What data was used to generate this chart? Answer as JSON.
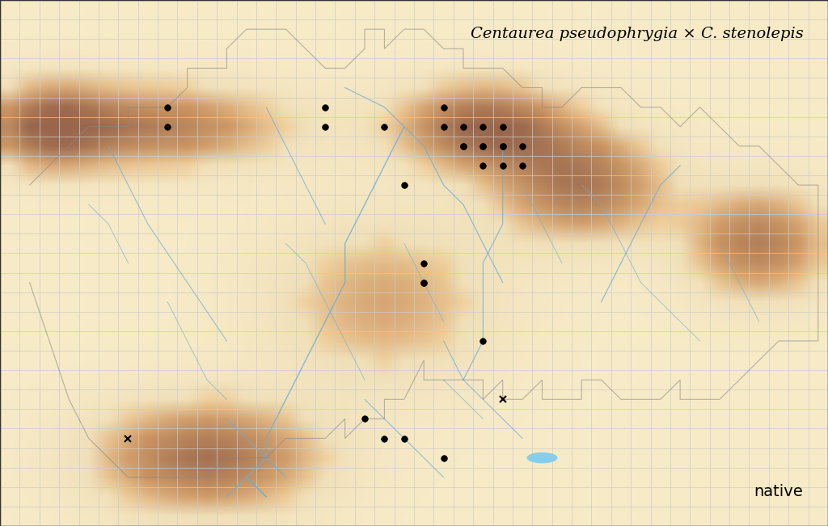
{
  "title": "Centaurea pseudophrygia × C. stenolepis",
  "note": "native",
  "x_min": 38,
  "x_max": 79,
  "y_min": 48,
  "y_max": 74,
  "background_color": "#f5f5f5",
  "grid_color": "#cccccc",
  "dot_points": [
    [
      46,
      53
    ],
    [
      46,
      54
    ],
    [
      54,
      53
    ],
    [
      54,
      54
    ],
    [
      57,
      54
    ],
    [
      60,
      53
    ],
    [
      60,
      54
    ],
    [
      61,
      54
    ],
    [
      61,
      55
    ],
    [
      61,
      55
    ],
    [
      62,
      54
    ],
    [
      62,
      55
    ],
    [
      62,
      55
    ],
    [
      63,
      54
    ],
    [
      63,
      55
    ],
    [
      63,
      55
    ],
    [
      62,
      56
    ],
    [
      63,
      56
    ],
    [
      64,
      55
    ],
    [
      64,
      56
    ],
    [
      58,
      57
    ],
    [
      59,
      61
    ],
    [
      59,
      62
    ],
    [
      59,
      62
    ],
    [
      62,
      65
    ],
    [
      57,
      70
    ],
    [
      58,
      70
    ],
    [
      60,
      71
    ],
    [
      56,
      69
    ]
  ],
  "cross_points": [
    [
      44,
      70
    ],
    [
      63,
      68
    ]
  ],
  "dot_color": "#000000",
  "cross_color": "#000000",
  "map_bg_colors": {
    "land_light": "#f5deb3",
    "land_mid": "#d4a96a",
    "land_dark": "#b8860b",
    "water": "#87ceeb",
    "border": "#888888"
  },
  "title_fontsize": 14,
  "note_fontsize": 14,
  "tick_fontsize": 8.5
}
